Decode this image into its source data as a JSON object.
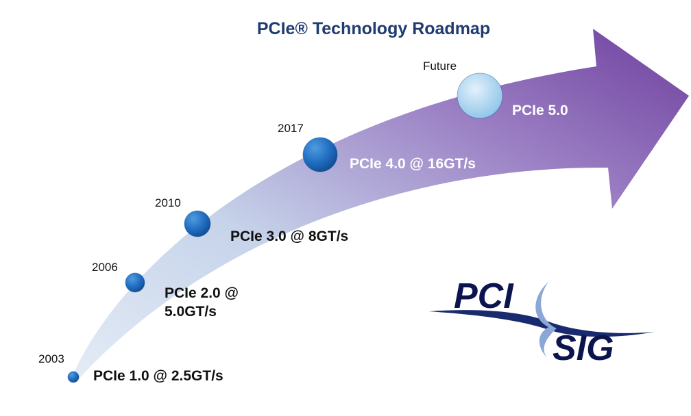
{
  "title": "PCIe® Technology Roadmap",
  "milestones": [
    {
      "year": "2003",
      "label": [
        "PCIe 1.0 @ 2.5GT/s"
      ]
    },
    {
      "year": "2006",
      "label": [
        "PCIe 2.0 @",
        "5.0GT/s"
      ]
    },
    {
      "year": "2010",
      "label": [
        "PCIe 3.0 @ 8GT/s"
      ]
    },
    {
      "year": "2017",
      "label": [
        "PCIe 4.0 @ 16GT/s"
      ]
    },
    {
      "year": "Future",
      "label": [
        "PCIe 5.0"
      ]
    }
  ],
  "logo": {
    "top": "PCI",
    "bottom": "SIG"
  }
}
